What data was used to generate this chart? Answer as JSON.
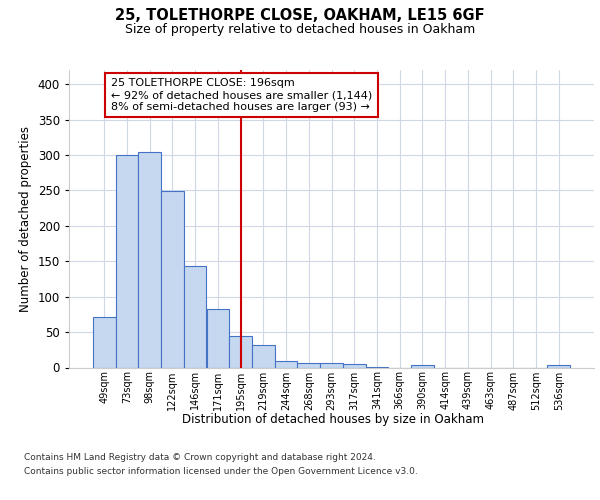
{
  "title1": "25, TOLETHORPE CLOSE, OAKHAM, LE15 6GF",
  "title2": "Size of property relative to detached houses in Oakham",
  "xlabel": "Distribution of detached houses by size in Oakham",
  "ylabel": "Number of detached properties",
  "footnote1": "Contains HM Land Registry data © Crown copyright and database right 2024.",
  "footnote2": "Contains public sector information licensed under the Open Government Licence v3.0.",
  "categories": [
    "49sqm",
    "73sqm",
    "98sqm",
    "122sqm",
    "146sqm",
    "171sqm",
    "195sqm",
    "219sqm",
    "244sqm",
    "268sqm",
    "293sqm",
    "317sqm",
    "341sqm",
    "366sqm",
    "390sqm",
    "414sqm",
    "439sqm",
    "463sqm",
    "487sqm",
    "512sqm",
    "536sqm"
  ],
  "values": [
    72,
    300,
    304,
    249,
    144,
    83,
    45,
    32,
    9,
    6,
    6,
    5,
    1,
    0,
    4,
    0,
    0,
    0,
    0,
    0,
    3
  ],
  "bar_color": "#c5d8ef",
  "bar_edge_color": "#4472c4",
  "bg_color": "#ffffff",
  "plot_bg_color": "#ffffff",
  "grid_color": "#d0d8e8",
  "annotation_text_line1": "25 TOLETHORPE CLOSE: 196sqm",
  "annotation_text_line2": "← 92% of detached houses are smaller (1,144)",
  "annotation_text_line3": "8% of semi-detached houses are larger (93) →",
  "annotation_box_color": "#ffffff",
  "annotation_border_color": "#cc0000",
  "vline_color": "#cc0000",
  "ylim": [
    0,
    420
  ],
  "yticks": [
    0,
    50,
    100,
    150,
    200,
    250,
    300,
    350,
    400
  ],
  "vline_index": 6
}
